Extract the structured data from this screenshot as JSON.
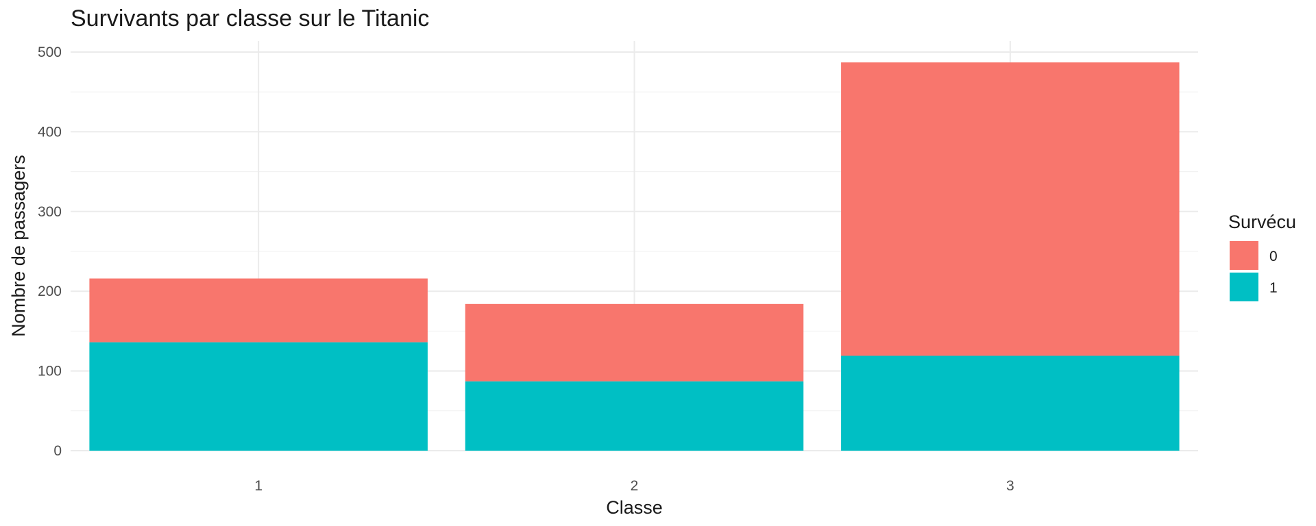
{
  "chart_data": {
    "type": "bar",
    "stacked": true,
    "title": "Survivants par classe sur le Titanic",
    "xlabel": "Classe",
    "ylabel": "Nombre de passagers",
    "categories": [
      "1",
      "2",
      "3"
    ],
    "ylim": [
      0,
      500
    ],
    "yticks": [
      0,
      100,
      200,
      300,
      400,
      500
    ],
    "legend": {
      "title": "Survécu",
      "position": "right"
    },
    "series": [
      {
        "name": "1",
        "color": "#00BFC4",
        "values": [
          136,
          87,
          119
        ]
      },
      {
        "name": "0",
        "color": "#F8766D",
        "values": [
          80,
          97,
          368
        ]
      }
    ],
    "legend_order": [
      "0",
      "1"
    ],
    "grid": true
  }
}
